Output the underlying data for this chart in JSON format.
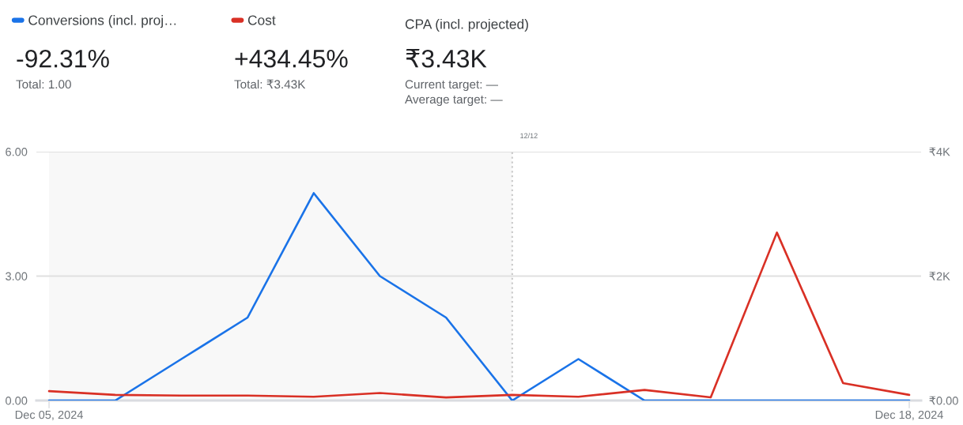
{
  "chart_data": {
    "type": "line",
    "x": [
      "2024-12-05",
      "2024-12-06",
      "2024-12-07",
      "2024-12-08",
      "2024-12-09",
      "2024-12-10",
      "2024-12-11",
      "2024-12-12",
      "2024-12-13",
      "2024-12-14",
      "2024-12-15",
      "2024-12-16",
      "2024-12-17",
      "2024-12-18"
    ],
    "series": [
      {
        "name": "Conversions (incl. proj…",
        "color": "#1a73e8",
        "values": [
          0,
          0,
          1,
          2,
          5,
          3,
          2,
          0,
          1,
          0,
          0,
          0,
          0,
          0
        ]
      },
      {
        "name": "Cost",
        "color": "#d93025",
        "axis": "y2",
        "values": [
          150,
          90,
          80,
          80,
          60,
          120,
          50,
          90,
          60,
          170,
          50,
          2700,
          280,
          90
        ]
      }
    ],
    "xlim": [
      "2024-12-04T19:24",
      "2024-12-18T04:18"
    ],
    "xticks": [
      {
        "value": "2024-12-05",
        "label": "Dec 05, 2024"
      },
      {
        "value": "2024-12-18",
        "label": "Dec 18, 2024"
      }
    ],
    "ylim": [
      0,
      6
    ],
    "yticks": [
      {
        "value": 0,
        "label": "0.00"
      },
      {
        "value": 3,
        "label": "3.00"
      },
      {
        "value": 6,
        "label": "6.00"
      }
    ],
    "y2lim": [
      0,
      4000
    ],
    "y2ticks": [
      {
        "value": 0,
        "label": "₹0.00"
      },
      {
        "value": 2000,
        "label": "₹2K"
      },
      {
        "value": 4000,
        "label": "₹4K"
      }
    ],
    "grid": "y",
    "legend": "top left",
    "bands": [
      {
        "axis": "x",
        "from": "2024-12-05",
        "to": "2024-12-12",
        "color": "#f8f8f8"
      }
    ],
    "ref_lines": [
      {
        "axis": "x",
        "value": "2024-12-12",
        "label": "12/12",
        "color": "#cccccc",
        "line_style": "dotted"
      }
    ],
    "annotations": [
      "-92.31%",
      "Total: 1.00",
      "+434.45%",
      "Total: ₹3.43K",
      "CPA (incl. projected)",
      "₹3.43K",
      "Current target: —",
      "Average target: —"
    ]
  }
}
